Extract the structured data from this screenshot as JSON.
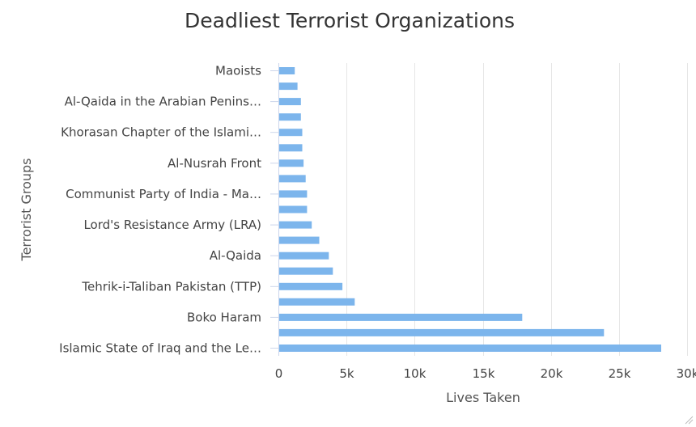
{
  "chart_data": {
    "type": "bar",
    "orientation": "horizontal",
    "title": "Deadliest Terrorist Organizations",
    "xlabel": "Lives Taken",
    "ylabel": "Terrorist Groups",
    "xlim": [
      0,
      30000
    ],
    "x_ticks": [
      "0",
      "5k",
      "10k",
      "15k",
      "20k",
      "25k",
      "30k"
    ],
    "grid": true,
    "legend": "none",
    "color": "#7cb5ec",
    "categories": [
      "Maoists",
      "",
      "Al-Qaida in the Arabian Penins…",
      "",
      "Khorasan Chapter of the Islami…",
      "",
      "Al-Nusrah Front",
      "",
      "Communist Party of India - Ma…",
      "",
      "Lord's Resistance Army (LRA)",
      "",
      "Al-Qaida",
      "",
      "Tehrik-i-Taliban Pakistan (TTP)",
      "",
      "Boko Haram",
      "",
      "Islamic State of Iraq and the Le…"
    ],
    "values": [
      1200,
      1400,
      1650,
      1650,
      1750,
      1750,
      1850,
      2000,
      2100,
      2100,
      2450,
      3000,
      3700,
      4000,
      4700,
      5600,
      17900,
      23900,
      28100
    ]
  }
}
